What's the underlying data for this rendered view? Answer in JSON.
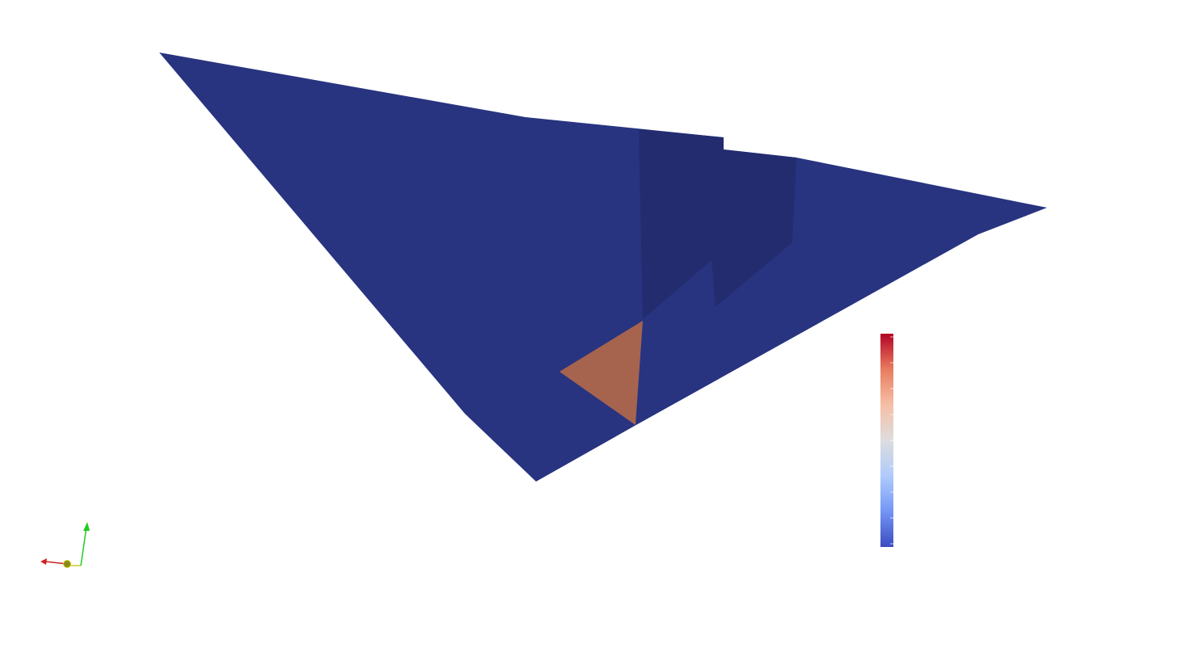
{
  "viewport": {
    "background": "#ffffff"
  },
  "surface": {
    "base_color": "#283480",
    "shaded_color": "#232c6f",
    "highlight_color": "#a6644f"
  },
  "color_legend": {
    "colormap": "coolwarm",
    "stops": [
      "#3b4cc0",
      "#7396f5",
      "#b0cbfc",
      "#dddddd",
      "#f6bfa6",
      "#e87c5e",
      "#b40426"
    ],
    "tick_count": 8
  },
  "orientation_axes": {
    "x_color": "#cc2222",
    "y_color": "#22cc22",
    "z_color": "#cccc22"
  }
}
